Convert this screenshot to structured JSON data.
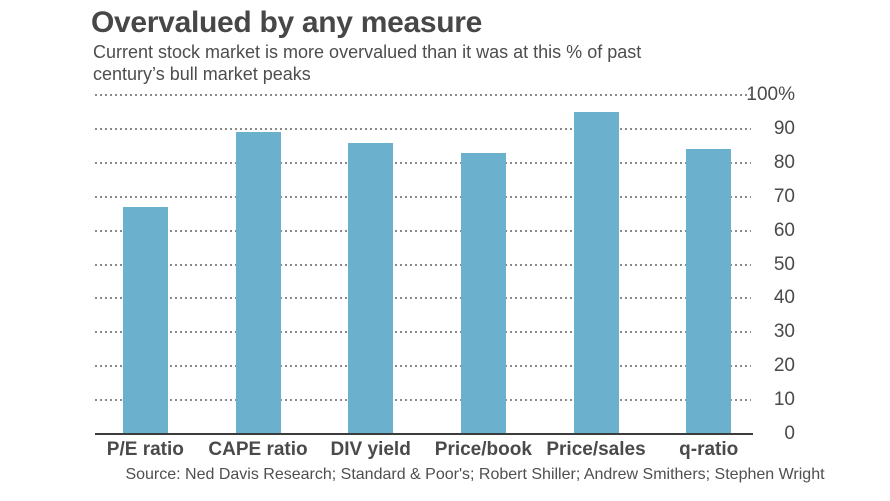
{
  "header": {
    "title": "Overvalued by any measure",
    "subtitle_line1": "Current stock market is more overvalued than it was at this % of past",
    "subtitle_line2": "century’s bull market peaks"
  },
  "chart_data": {
    "type": "bar",
    "title": "Overvalued by any measure",
    "subtitle": "Current stock market is more overvalued than it was at this % of past century’s bull market peaks",
    "categories": [
      "P/E ratio",
      "CAPE ratio",
      "DIV yield",
      "Price/book",
      "Price/sales",
      "q-ratio"
    ],
    "values": [
      67,
      89,
      86,
      83,
      95,
      84
    ],
    "unit": "%",
    "xlabel": "",
    "ylabel": "",
    "ylim": [
      0,
      100
    ],
    "ytick_step": 10,
    "ytick_labels_top_to_bottom": [
      "100%",
      "90",
      "80",
      "70",
      "60",
      "50",
      "40",
      "30",
      "20",
      "10",
      "0"
    ],
    "grid": "horizontal-dotted",
    "legend": "none",
    "colors": {
      "bar": "#6BB0CD",
      "gridline": "#8a8a8a",
      "axis": "#3c3c3c",
      "text": "#4a4a4a"
    }
  },
  "footer": {
    "source": "Source: Ned Davis Research; Standard & Poor's; Robert Shiller; Andrew Smithers; Stephen Wright"
  }
}
